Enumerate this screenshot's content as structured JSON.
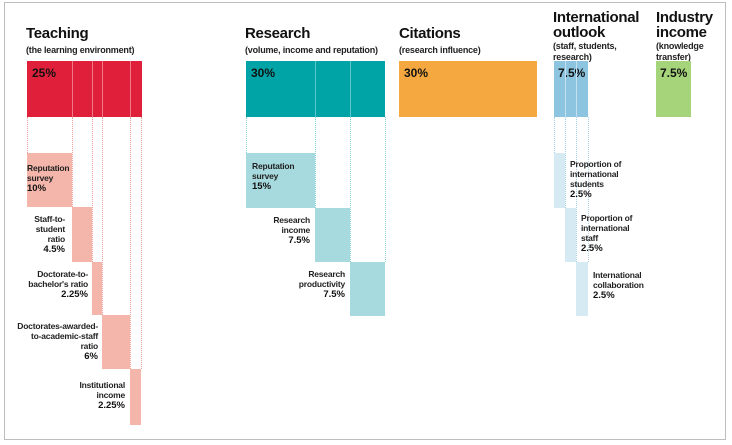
{
  "colors": {
    "teaching_main": "#e0203a",
    "teaching_sub": "#f4b6aa",
    "research_main": "#00a4a6",
    "research_sub": "#a7dade",
    "citations_main": "#f5a840",
    "intl_main": "#8dc4e0",
    "intl_sub": "#d6eaf4",
    "industry_main": "#a6d47a"
  },
  "teaching": {
    "title": "Teaching",
    "subtitle": "(the learning environment)",
    "weight": "25%",
    "items": [
      {
        "label_lines": [
          "Reputation",
          "survey"
        ],
        "value": "10%"
      },
      {
        "label_lines": [
          "Staff-to-",
          "student",
          "ratio"
        ],
        "value": "4.5%"
      },
      {
        "label_lines": [
          "Doctorate-to-",
          "bachelor's ratio"
        ],
        "value": "2.25%"
      },
      {
        "label_lines": [
          "Doctorates-awarded-",
          "to-academic-staff",
          "ratio"
        ],
        "value": "6%"
      },
      {
        "label_lines": [
          "Institutional",
          "income"
        ],
        "value": "2.25%"
      }
    ]
  },
  "research": {
    "title": "Research",
    "subtitle": "(volume, income and reputation)",
    "weight": "30%",
    "items": [
      {
        "label_lines": [
          "Reputation",
          "survey"
        ],
        "value": "15%"
      },
      {
        "label_lines": [
          "Research",
          "income"
        ],
        "value": "7.5%"
      },
      {
        "label_lines": [
          "Research",
          "productivity"
        ],
        "value": "7.5%"
      }
    ]
  },
  "citations": {
    "title": "Citations",
    "subtitle": "(research influence)",
    "weight": "30%"
  },
  "international": {
    "title_lines": [
      "International",
      "outlook"
    ],
    "subtitle_lines": [
      "(staff, students,",
      "research)"
    ],
    "weight": "7.5%",
    "items": [
      {
        "label_lines": [
          "Proportion of",
          "international",
          "students"
        ],
        "value": "2.5%"
      },
      {
        "label_lines": [
          "Proportion of",
          "international",
          "staff"
        ],
        "value": "2.5%"
      },
      {
        "label_lines": [
          "International",
          "collaboration"
        ],
        "value": "2.5%"
      }
    ]
  },
  "industry": {
    "title_lines": [
      "Industry",
      "income"
    ],
    "subtitle_lines": [
      "(knowledge",
      "transfer)"
    ],
    "weight": "7.5%"
  }
}
